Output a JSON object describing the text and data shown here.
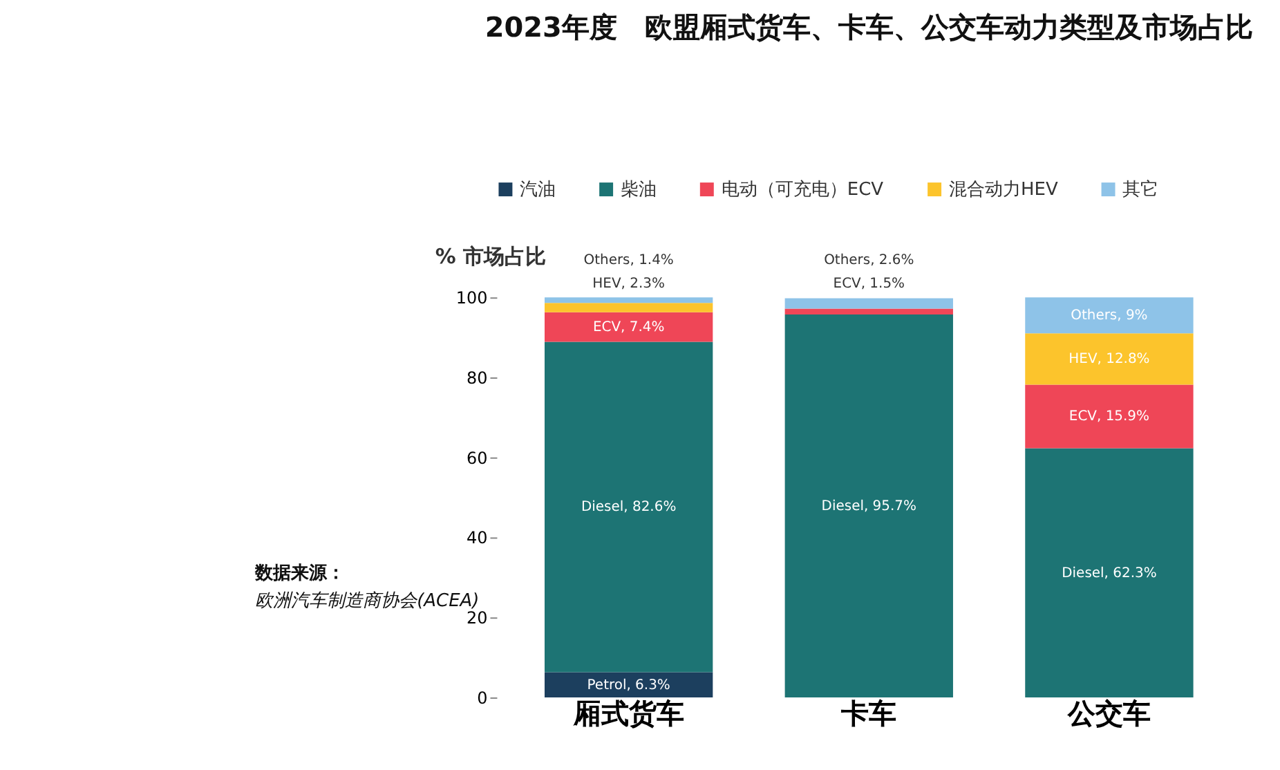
{
  "chart_data": {
    "type": "bar",
    "stacked": true,
    "title": "2023年度　欧盟厢式货车、卡车、公交车动力类型及市场占比",
    "ylabel": "% 市场占比",
    "categories": [
      "厢式货车",
      "卡车",
      "公交车"
    ],
    "ylim": [
      0,
      100
    ],
    "yticks": [
      0,
      20,
      40,
      60,
      80,
      100
    ],
    "grid": false,
    "legend": "top",
    "annotations": [
      "数据来源：",
      "欧洲汽车制造商协会(ACEA)"
    ],
    "series": [
      {
        "name": "汽油",
        "color": "#1c3f5e",
        "values": [
          6.3,
          null,
          null
        ],
        "value_labels": [
          "Petrol, 6.3%",
          null,
          null
        ]
      },
      {
        "name": "柴油",
        "color": "#1d7474",
        "values": [
          82.6,
          95.7,
          62.3
        ],
        "value_labels": [
          "Diesel, 82.6%",
          "Diesel, 95.7%",
          "Diesel, 62.3%"
        ]
      },
      {
        "name": "电动（可充电）ECV",
        "color": "#ef4657",
        "values": [
          7.4,
          1.5,
          15.9
        ],
        "value_labels": [
          "ECV, 7.4%",
          "ECV, 1.5%",
          "ECV, 15.9%"
        ]
      },
      {
        "name": "混合动力HEV",
        "color": "#fcc42c",
        "values": [
          2.3,
          null,
          12.8
        ],
        "value_labels": [
          "HEV, 2.3%",
          null,
          "HEV, 12.8%"
        ]
      },
      {
        "name": "其它",
        "color": "#8ec3e8",
        "values": [
          1.4,
          2.6,
          9
        ],
        "value_labels": [
          "Others, 1.4%",
          "Others, 2.6%",
          "Others, 9%"
        ]
      }
    ]
  }
}
